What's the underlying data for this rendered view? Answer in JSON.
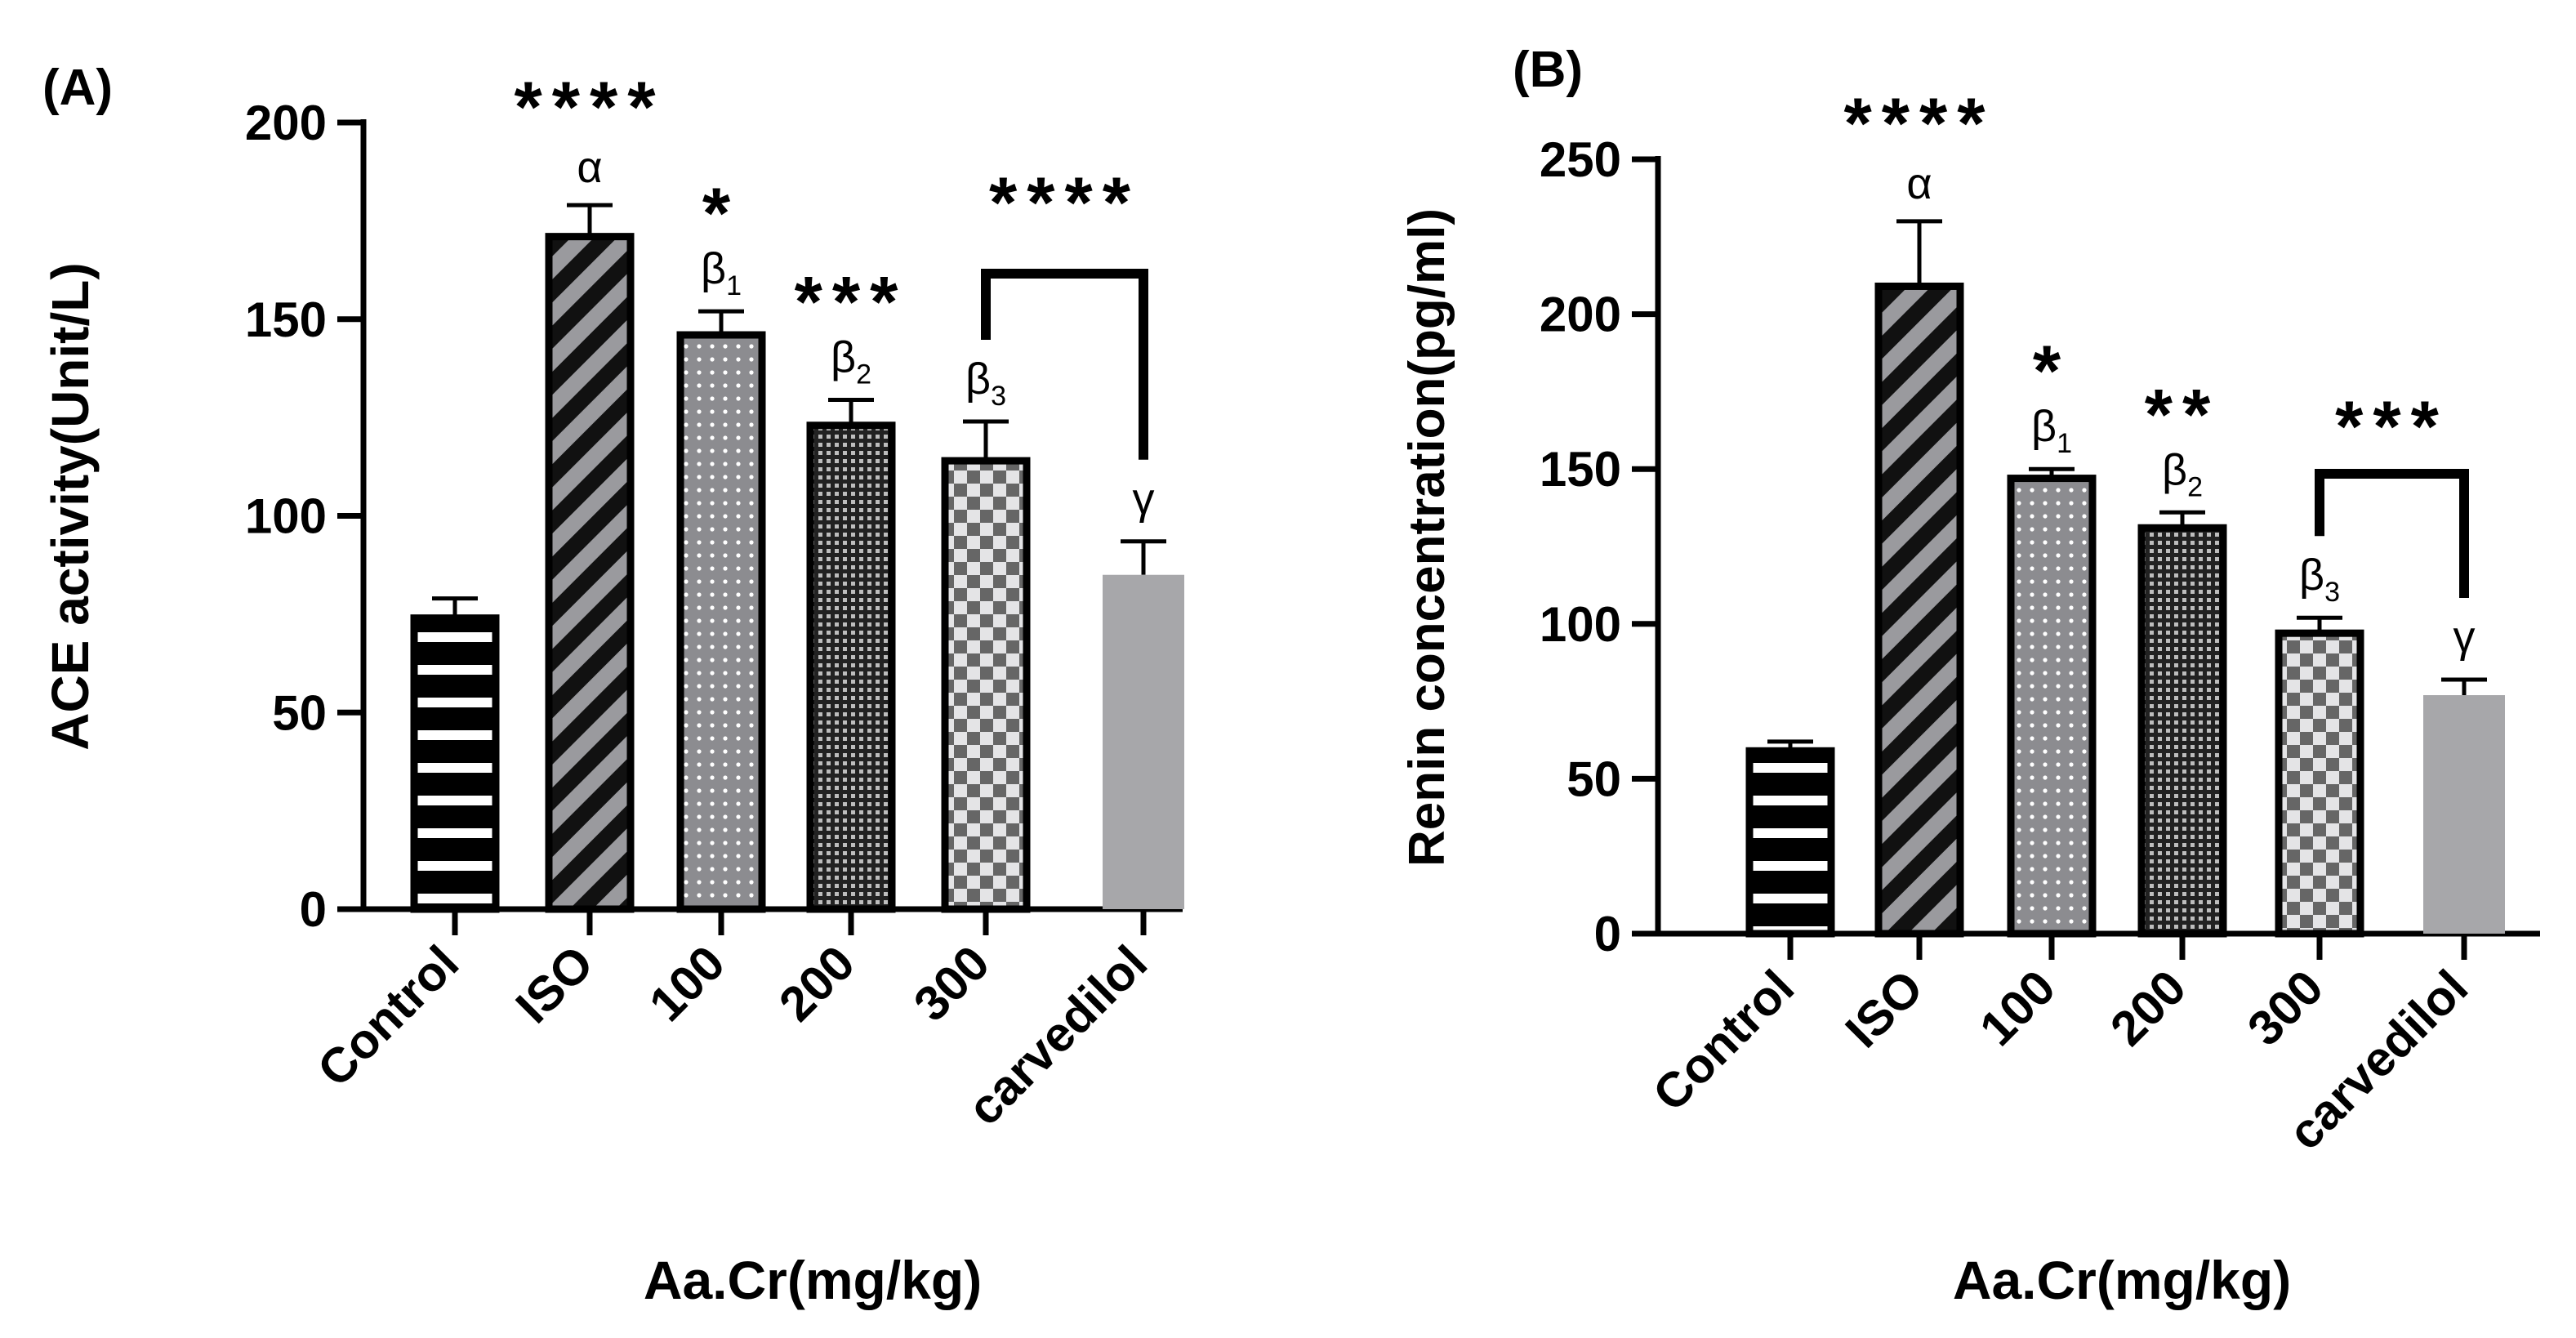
{
  "chart_data": [
    {
      "type": "bar",
      "panel_label": "(A)",
      "categories": [
        "Control",
        "ISO",
        "100",
        "200",
        "300",
        "carvedilol"
      ],
      "values": [
        74,
        171,
        146,
        123,
        114,
        85
      ],
      "errors": [
        5,
        8,
        6,
        6.5,
        10,
        8.5
      ],
      "ylim": [
        0,
        200
      ],
      "yticks": [
        "0",
        "50",
        "100",
        "150",
        "200"
      ],
      "ytick_values": [
        0,
        50,
        100,
        150,
        200
      ],
      "ylabel": "ACE activity(Unit/L)",
      "xlabel": "Aa.Cr(mg/kg)",
      "stars": [
        "",
        "****",
        "*",
        "***",
        "",
        ""
      ],
      "greek": [
        "",
        "α",
        "β1",
        "β2",
        "β3",
        "γ"
      ],
      "bracket_label": "****",
      "patterns": [
        "hstripe",
        "diag",
        "dots",
        "grid",
        "checker",
        "solid"
      ]
    },
    {
      "type": "bar",
      "panel_label": "(B)",
      "categories": [
        "Control",
        "ISO",
        "100",
        "200",
        "300",
        "carvedilol"
      ],
      "values": [
        59,
        209,
        147,
        131,
        97,
        77
      ],
      "errors": [
        3,
        21,
        3,
        5,
        5,
        5
      ],
      "ylim": [
        0,
        250
      ],
      "yticks": [
        "0",
        "50",
        "100",
        "150",
        "200",
        "250"
      ],
      "ytick_values": [
        0,
        50,
        100,
        150,
        200,
        250
      ],
      "ylabel": "Renin concentration(pg/ml)",
      "xlabel": "Aa.Cr(mg/kg)",
      "stars": [
        "",
        "****",
        "*",
        "**",
        "",
        ""
      ],
      "greek": [
        "",
        "α",
        "β1",
        "β2",
        "β3",
        "γ"
      ],
      "bracket_label": "***",
      "patterns": [
        "hstripe",
        "diag",
        "dots",
        "grid",
        "checker",
        "solid"
      ]
    }
  ]
}
